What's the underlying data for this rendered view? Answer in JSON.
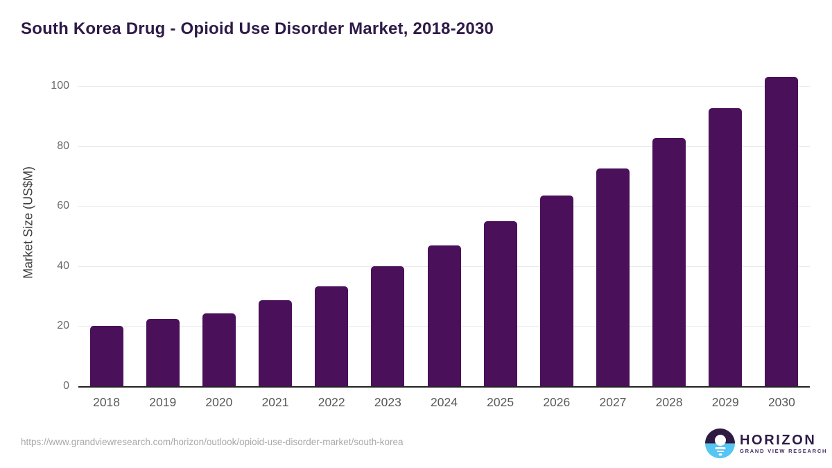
{
  "page": {
    "title": "South Korea Drug - Opioid Use Disorder Market, 2018-2030"
  },
  "chart_data": {
    "type": "bar",
    "title": "South Korea Drug - Opioid Use Disorder Market, 2018-2030",
    "categories": [
      "2018",
      "2019",
      "2020",
      "2021",
      "2022",
      "2023",
      "2024",
      "2025",
      "2026",
      "2027",
      "2028",
      "2029",
      "2030"
    ],
    "values": [
      20.2,
      22.4,
      24.2,
      28.7,
      33.2,
      39.9,
      46.9,
      55.0,
      63.4,
      72.5,
      82.6,
      92.7,
      103.0
    ],
    "xlabel": "",
    "ylabel": "Market Size (US$M)",
    "ylim": [
      0,
      107
    ],
    "yticks": [
      0,
      20,
      40,
      60,
      80,
      100
    ],
    "grid": "horizontal",
    "legend": "none",
    "bar_color": "#4a1059"
  },
  "footer": {
    "source_url": "https://www.grandviewresearch.com/horizon/outlook/opioid-use-disorder-market/south-korea",
    "logo": {
      "brand": "HORIZON",
      "subbrand": "GRAND VIEW RESEARCH",
      "icon": "sunset-horizon-icon"
    }
  },
  "colors": {
    "title": "#2e1a47",
    "bar": "#4a1059",
    "gridline": "#e9e9e9",
    "axis_line": "#222222",
    "y_tick_label": "#6b6b6b",
    "x_tick_label": "#585858",
    "source_url": "#a9a9a9",
    "logo_purple": "#2d1b42",
    "logo_blue": "#56c5f2"
  }
}
